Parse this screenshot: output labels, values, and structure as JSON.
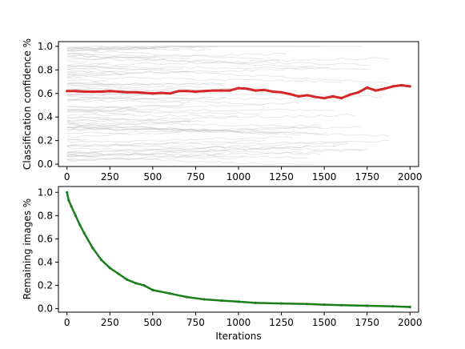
{
  "chart_data": [
    {
      "type": "line",
      "title": "",
      "xlabel": "",
      "ylabel": "Classification confidence %",
      "xlim": [
        -50,
        2050
      ],
      "ylim": [
        -0.02,
        1.04
      ],
      "xticks": [
        0,
        250,
        500,
        750,
        1000,
        1250,
        1500,
        1750,
        2000
      ],
      "yticks": [
        0.0,
        0.2,
        0.4,
        0.6,
        0.8,
        1.0
      ],
      "xtick_labels": [
        "0",
        "250",
        "500",
        "750",
        "1000",
        "1250",
        "1500",
        "1750",
        "2000"
      ],
      "ytick_labels": [
        "0.0",
        "0.2",
        "0.4",
        "0.6",
        "0.8",
        "1.0"
      ],
      "grid": false,
      "series": [
        {
          "color": "#d62728",
          "role": "mean",
          "x": [
            0,
            50,
            100,
            150,
            200,
            250,
            300,
            350,
            400,
            450,
            500,
            550,
            600,
            650,
            700,
            750,
            800,
            850,
            900,
            950,
            1000,
            1050,
            1100,
            1150,
            1200,
            1250,
            1300,
            1350,
            1400,
            1450,
            1500,
            1550,
            1600,
            1650,
            1700,
            1750,
            1800,
            1850,
            1900,
            1950,
            2000
          ],
          "y": [
            0.62,
            0.62,
            0.615,
            0.615,
            0.615,
            0.62,
            0.615,
            0.61,
            0.61,
            0.605,
            0.6,
            0.605,
            0.6,
            0.62,
            0.62,
            0.615,
            0.62,
            0.625,
            0.625,
            0.625,
            0.645,
            0.64,
            0.625,
            0.63,
            0.615,
            0.61,
            0.595,
            0.575,
            0.585,
            0.57,
            0.56,
            0.575,
            0.56,
            0.59,
            0.61,
            0.65,
            0.625,
            0.64,
            0.66,
            0.67,
            0.66
          ]
        }
      ],
      "background_traces": {
        "color": "#bbbbbb",
        "count": 90,
        "x_range": [
          0,
          2000
        ],
        "y_range": [
          0.0,
          1.0
        ]
      }
    },
    {
      "type": "line",
      "title": "",
      "xlabel": "Iterations",
      "ylabel": "Remaining images %",
      "xlim": [
        -50,
        2050
      ],
      "ylim": [
        -0.03,
        1.05
      ],
      "xticks": [
        0,
        250,
        500,
        750,
        1000,
        1250,
        1500,
        1750,
        2000
      ],
      "yticks": [
        0.0,
        0.2,
        0.4,
        0.6,
        0.8,
        1.0
      ],
      "xtick_labels": [
        "0",
        "250",
        "500",
        "750",
        "1000",
        "1250",
        "1500",
        "1750",
        "2000"
      ],
      "ytick_labels": [
        "0.0",
        "0.2",
        "0.4",
        "0.6",
        "0.8",
        "1.0"
      ],
      "grid": false,
      "series": [
        {
          "color": "#1a7f1a",
          "x": [
            0,
            10,
            25,
            50,
            75,
            100,
            150,
            200,
            250,
            300,
            350,
            400,
            450,
            500,
            600,
            700,
            800,
            900,
            1000,
            1100,
            1250,
            1400,
            1500,
            1600,
            1750,
            1900,
            2000
          ],
          "y": [
            1.0,
            0.93,
            0.88,
            0.8,
            0.72,
            0.65,
            0.52,
            0.42,
            0.35,
            0.3,
            0.25,
            0.22,
            0.2,
            0.16,
            0.13,
            0.1,
            0.08,
            0.07,
            0.06,
            0.05,
            0.045,
            0.04,
            0.035,
            0.03,
            0.025,
            0.02,
            0.015
          ]
        }
      ]
    }
  ]
}
